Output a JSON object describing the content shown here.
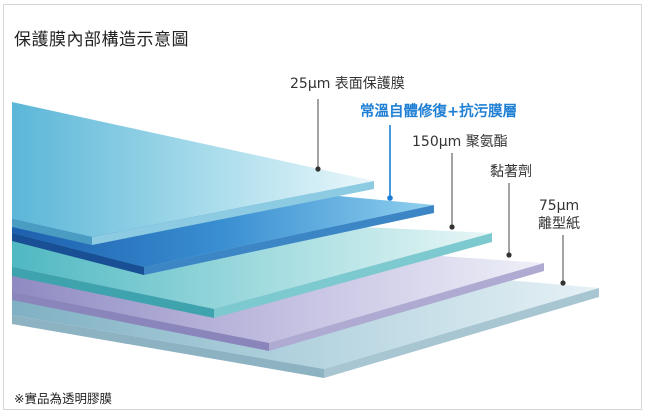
{
  "title": "保護膜內部構造示意圖",
  "note": "※實品為透明膠膜",
  "layers": [
    {
      "label": "25μm 表面保護膜"
    },
    {
      "label": "常溫自體修復+抗污膜層"
    },
    {
      "label": "150μm 聚氨酯"
    },
    {
      "label": "黏著劑"
    },
    {
      "label_line1": "75μm",
      "label_line2": "離型紙"
    }
  ],
  "colors": {
    "highlight": "#1e7fd4",
    "protective_film": "#5fb8d8",
    "self_healing_layer": "#2a7cc7",
    "polyurethane": "#5ec1c9",
    "adhesive": "#9a96c7",
    "release_paper": "#86b8c6"
  }
}
